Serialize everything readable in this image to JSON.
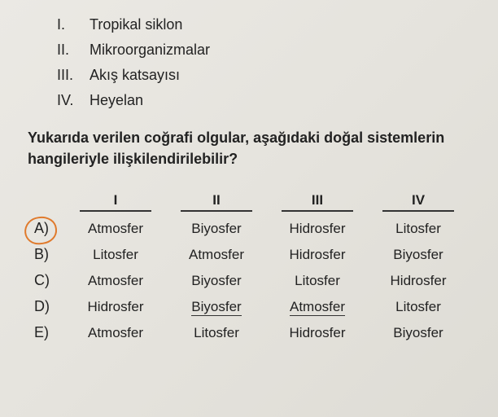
{
  "romanItems": [
    {
      "num": "I.",
      "text": "Tropikal siklon"
    },
    {
      "num": "II.",
      "text": "Mikroorganizmalar"
    },
    {
      "num": "III.",
      "text": "Akış katsayısı"
    },
    {
      "num": "IV.",
      "text": "Heyelan"
    }
  ],
  "question": "Yukarıda verilen coğrafi olgular, aşağıdaki doğal sistemlerin hangileriyle ilişkilendirilebilir?",
  "headers": [
    "I",
    "II",
    "III",
    "IV"
  ],
  "options": [
    {
      "label": "A)",
      "cells": [
        "Atmosfer",
        "Biyosfer",
        "Hidrosfer",
        "Litosfer"
      ],
      "circled": true
    },
    {
      "label": "B)",
      "cells": [
        "Litosfer",
        "Atmosfer",
        "Hidrosfer",
        "Biyosfer"
      ],
      "circled": false
    },
    {
      "label": "C)",
      "cells": [
        "Atmosfer",
        "Biyosfer",
        "Litosfer",
        "Hidrosfer"
      ],
      "circled": false
    },
    {
      "label": "D)",
      "cells": [
        "Hidrosfer",
        "Biyosfer",
        "Atmosfer",
        "Litosfer"
      ],
      "circled": false,
      "underlineCols": [
        1,
        2
      ]
    },
    {
      "label": "E)",
      "cells": [
        "Atmosfer",
        "Litosfer",
        "Hidrosfer",
        "Biyosfer"
      ],
      "circled": false
    }
  ],
  "colors": {
    "circle": "#e07a2c",
    "text": "#222222",
    "bg": "#e7e5df"
  }
}
